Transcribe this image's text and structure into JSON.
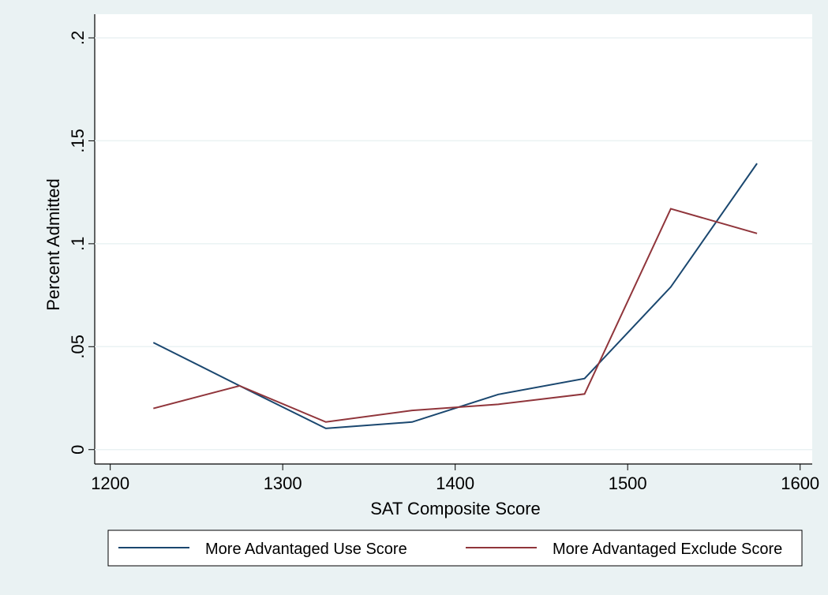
{
  "chart_data": {
    "type": "line",
    "x_label": "SAT Composite Score",
    "y_label": "Percent Admitted",
    "x": [
      1225,
      1275,
      1325,
      1375,
      1425,
      1475,
      1525,
      1575
    ],
    "series": [
      {
        "name": "More Advantaged Use Score",
        "color": "#1a476f",
        "values": [
          0.052,
          0.031,
          0.0103,
          0.0134,
          0.0268,
          0.0345,
          0.079,
          0.139
        ]
      },
      {
        "name": "More Advantaged Exclude Score",
        "color": "#90353b",
        "values": [
          0.02,
          0.031,
          0.0134,
          0.019,
          0.022,
          0.027,
          0.117,
          0.105
        ]
      }
    ],
    "xlim": [
      1191,
      1607
    ],
    "ylim": [
      -0.007,
      0.2115
    ],
    "xticks": [
      1200,
      1300,
      1400,
      1500,
      1600
    ],
    "yticks": [
      {
        "value": 0,
        "label": "0"
      },
      {
        "value": 0.05,
        "label": ".05"
      },
      {
        "value": 0.1,
        "label": ".1"
      },
      {
        "value": 0.15,
        "label": ".15"
      },
      {
        "value": 0.2,
        "label": ".2"
      }
    ],
    "grid": true,
    "legend": "bottom"
  }
}
